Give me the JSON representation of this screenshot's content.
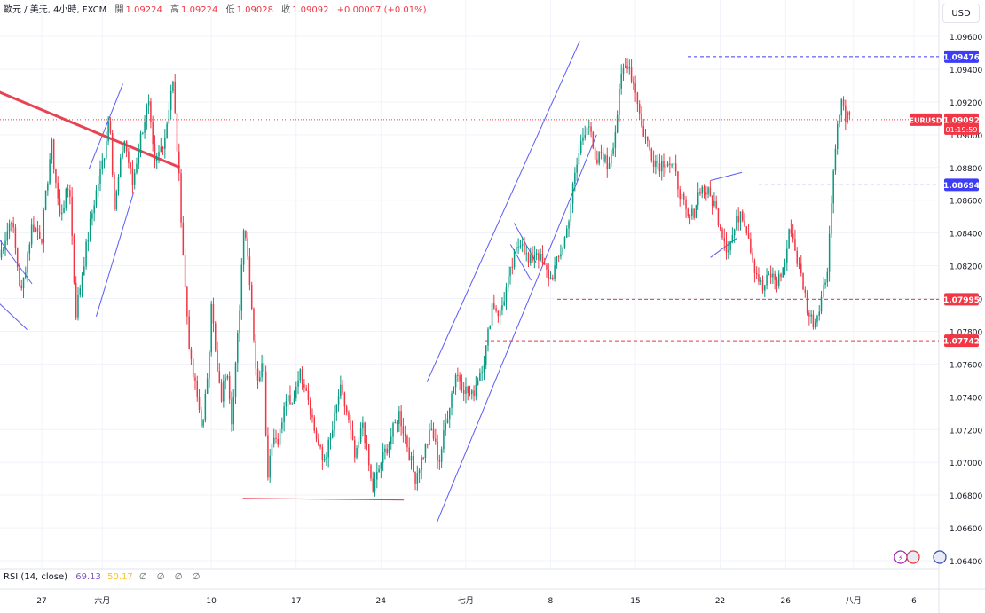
{
  "legend": {
    "symbol_line": "歐元 / 美元, 4小時, FXCM",
    "open_label": "開",
    "open": "1.09224",
    "high_label": "高",
    "high": "1.09224",
    "low_label": "低",
    "low": "1.09028",
    "close_label": "收",
    "close": "1.09092",
    "change": "+0.00007 (+0.01%)"
  },
  "currency_button": "USD",
  "current_price": {
    "ticker": "EURUSD",
    "price": "1.09092",
    "countdown": "01:19:59"
  },
  "rsi": {
    "label": "RSI (14, close)",
    "value": "69.13",
    "ma": "50.17",
    "extra": "∅ ∅ ∅ ∅"
  },
  "colors": {
    "up": "#089981",
    "down": "#f23645",
    "channel": "#5b5bf5",
    "trend": "#e84352",
    "axis_text": "#131722"
  },
  "chart_data": {
    "type": "candlestick",
    "title": "",
    "y_ticks": [
      "1.09600",
      "1.09400",
      "1.09200",
      "1.09000",
      "1.08800",
      "1.08600",
      "1.08400",
      "1.08200",
      "1.08000",
      "1.07800",
      "1.07600",
      "1.07400",
      "1.07200",
      "1.07000",
      "1.06800",
      "1.06600",
      "1.06400"
    ],
    "ylim": [
      1.064,
      1.097
    ],
    "x_ticks": [
      {
        "label": "27",
        "x": 27
      },
      {
        "label": "六月",
        "x": 32
      },
      {
        "label": "10",
        "x": 41
      },
      {
        "label": "17",
        "x": 48
      },
      {
        "label": "24",
        "x": 55
      },
      {
        "label": "七月",
        "x": 62
      },
      {
        "label": "8",
        "x": 69
      },
      {
        "label": "15",
        "x": 76
      },
      {
        "label": "22",
        "x": 83
      },
      {
        "label": "26",
        "x": 88.4
      },
      {
        "label": "八月",
        "x": 94
      },
      {
        "label": "6",
        "x": 99
      }
    ],
    "xlim": [
      23.5,
      100.7
    ],
    "price_labels": [
      {
        "value": 1.09476,
        "text": "1.09476",
        "color": "#3d3df7"
      },
      {
        "value": 1.08694,
        "text": "1.08694",
        "color": "#3d3df7"
      },
      {
        "value": 1.07995,
        "text": "1.07995",
        "color": "#f23645"
      },
      {
        "value": 1.07742,
        "text": "1.07742",
        "color": "#f23645"
      }
    ],
    "keypoints": [
      [
        23.5,
        1.0825
      ],
      [
        24.5,
        1.085
      ],
      [
        25.3,
        1.0802
      ],
      [
        26.2,
        1.0845
      ],
      [
        27.0,
        1.0838
      ],
      [
        27.8,
        1.0895
      ],
      [
        28.5,
        1.085
      ],
      [
        29.3,
        1.087
      ],
      [
        29.8,
        1.079
      ],
      [
        30.6,
        1.0828
      ],
      [
        31.3,
        1.0858
      ],
      [
        32.2,
        1.089
      ],
      [
        32.6,
        1.0915
      ],
      [
        33.0,
        1.0855
      ],
      [
        33.8,
        1.0898
      ],
      [
        34.5,
        1.087
      ],
      [
        35.2,
        1.09
      ],
      [
        35.8,
        1.092
      ],
      [
        36.3,
        1.088
      ],
      [
        37.2,
        1.09
      ],
      [
        37.8,
        1.0935
      ],
      [
        38.4,
        1.0865
      ],
      [
        38.8,
        1.081
      ],
      [
        39.3,
        1.076
      ],
      [
        39.7,
        1.0745
      ],
      [
        40.3,
        1.072
      ],
      [
        40.8,
        1.0765
      ],
      [
        41.0,
        1.08
      ],
      [
        41.4,
        1.076
      ],
      [
        41.8,
        1.0738
      ],
      [
        42.3,
        1.076
      ],
      [
        42.7,
        1.0725
      ],
      [
        43.3,
        1.079
      ],
      [
        43.7,
        1.085
      ],
      [
        44.2,
        1.081
      ],
      [
        44.8,
        1.0745
      ],
      [
        45.3,
        1.077
      ],
      [
        45.6,
        1.069
      ],
      [
        46.0,
        1.0715
      ],
      [
        46.6,
        1.0715
      ],
      [
        47.2,
        1.074
      ],
      [
        47.6,
        1.0732
      ],
      [
        48.2,
        1.0755
      ],
      [
        48.8,
        1.0748
      ],
      [
        49.5,
        1.072
      ],
      [
        50.2,
        1.07
      ],
      [
        50.9,
        1.0715
      ],
      [
        51.6,
        1.0745
      ],
      [
        52.2,
        1.073
      ],
      [
        52.9,
        1.07
      ],
      [
        53.5,
        1.0725
      ],
      [
        54.3,
        1.0682
      ],
      [
        55.0,
        1.07
      ],
      [
        55.8,
        1.0715
      ],
      [
        56.5,
        1.073
      ],
      [
        57.2,
        1.071
      ],
      [
        57.8,
        1.069
      ],
      [
        58.5,
        1.0705
      ],
      [
        59.2,
        1.072
      ],
      [
        59.8,
        1.07
      ],
      [
        60.5,
        1.073
      ],
      [
        61.2,
        1.0755
      ],
      [
        61.9,
        1.0745
      ],
      [
        62.5,
        1.074
      ],
      [
        63.0,
        1.0752
      ],
      [
        63.6,
        1.0765
      ],
      [
        64.2,
        1.0798
      ],
      [
        64.8,
        1.079
      ],
      [
        65.5,
        1.081
      ],
      [
        66.0,
        1.0825
      ],
      [
        66.6,
        1.0838
      ],
      [
        67.2,
        1.082
      ],
      [
        67.8,
        1.083
      ],
      [
        68.5,
        1.0818
      ],
      [
        69.0,
        1.0812
      ],
      [
        69.7,
        1.0825
      ],
      [
        70.3,
        1.084
      ],
      [
        70.9,
        1.087
      ],
      [
        71.5,
        1.0895
      ],
      [
        72.1,
        1.091
      ],
      [
        72.7,
        1.088
      ],
      [
        73.2,
        1.089
      ],
      [
        73.7,
        1.088
      ],
      [
        74.3,
        1.09
      ],
      [
        74.9,
        1.0938
      ],
      [
        75.4,
        1.0945
      ],
      [
        75.7,
        1.0935
      ],
      [
        76.1,
        1.0925
      ],
      [
        76.5,
        1.0905
      ],
      [
        77.0,
        1.0895
      ],
      [
        77.5,
        1.0885
      ],
      [
        78.0,
        1.0882
      ],
      [
        78.6,
        1.0885
      ],
      [
        79.2,
        1.0878
      ],
      [
        79.8,
        1.0862
      ],
      [
        80.3,
        1.0848
      ],
      [
        80.8,
        1.0852
      ],
      [
        81.3,
        1.0868
      ],
      [
        81.9,
        1.0865
      ],
      [
        82.5,
        1.0858
      ],
      [
        83.0,
        1.0845
      ],
      [
        83.6,
        1.083
      ],
      [
        84.1,
        1.084
      ],
      [
        84.7,
        1.0855
      ],
      [
        85.3,
        1.084
      ],
      [
        85.8,
        1.082
      ],
      [
        86.5,
        1.0805
      ],
      [
        87.1,
        1.0815
      ],
      [
        87.7,
        1.081
      ],
      [
        88.3,
        1.082
      ],
      [
        88.8,
        1.0845
      ],
      [
        89.3,
        1.0825
      ],
      [
        89.8,
        1.081
      ],
      [
        90.3,
        1.079
      ],
      [
        90.8,
        1.0785
      ],
      [
        91.3,
        1.08
      ],
      [
        91.8,
        1.0815
      ],
      [
        92.5,
        1.0895
      ],
      [
        93.0,
        1.092
      ],
      [
        93.4,
        1.091
      ],
      [
        93.7,
        1.09092
      ]
    ],
    "drawings": {
      "channels": [
        [
          [
            23.5,
            1.0836
          ],
          [
            26.2,
            1.0809
          ],
          [
            23.5,
            1.0797
          ],
          [
            25.8,
            1.0781
          ]
        ],
        [
          [
            30.9,
            1.0879
          ],
          [
            33.7,
            1.0931
          ],
          [
            31.5,
            1.0789
          ],
          [
            34.6,
            1.0865
          ]
        ],
        [
          [
            58.8,
            1.0749
          ],
          [
            71.4,
            1.0957
          ],
          [
            59.6,
            1.0663
          ],
          [
            72.8,
            1.09
          ]
        ],
        [
          [
            82.2,
            1.0872
          ],
          [
            84.8,
            1.0877
          ],
          [
            82.2,
            1.0825
          ],
          [
            84.4,
            1.0837
          ]
        ],
        [
          [
            66.0,
            1.0846
          ],
          [
            67.8,
            1.0822
          ],
          [
            65.7,
            1.0833
          ],
          [
            67.4,
            1.0811
          ]
        ]
      ],
      "trend": [
        [
          23.5,
          1.0926
        ],
        [
          38.4,
          1.088
        ]
      ],
      "support": [
        [
          43.6,
          1.0678
        ],
        [
          56.9,
          1.0677
        ]
      ]
    },
    "rsi": {
      "value": 69.13,
      "ma": 50.17
    }
  }
}
